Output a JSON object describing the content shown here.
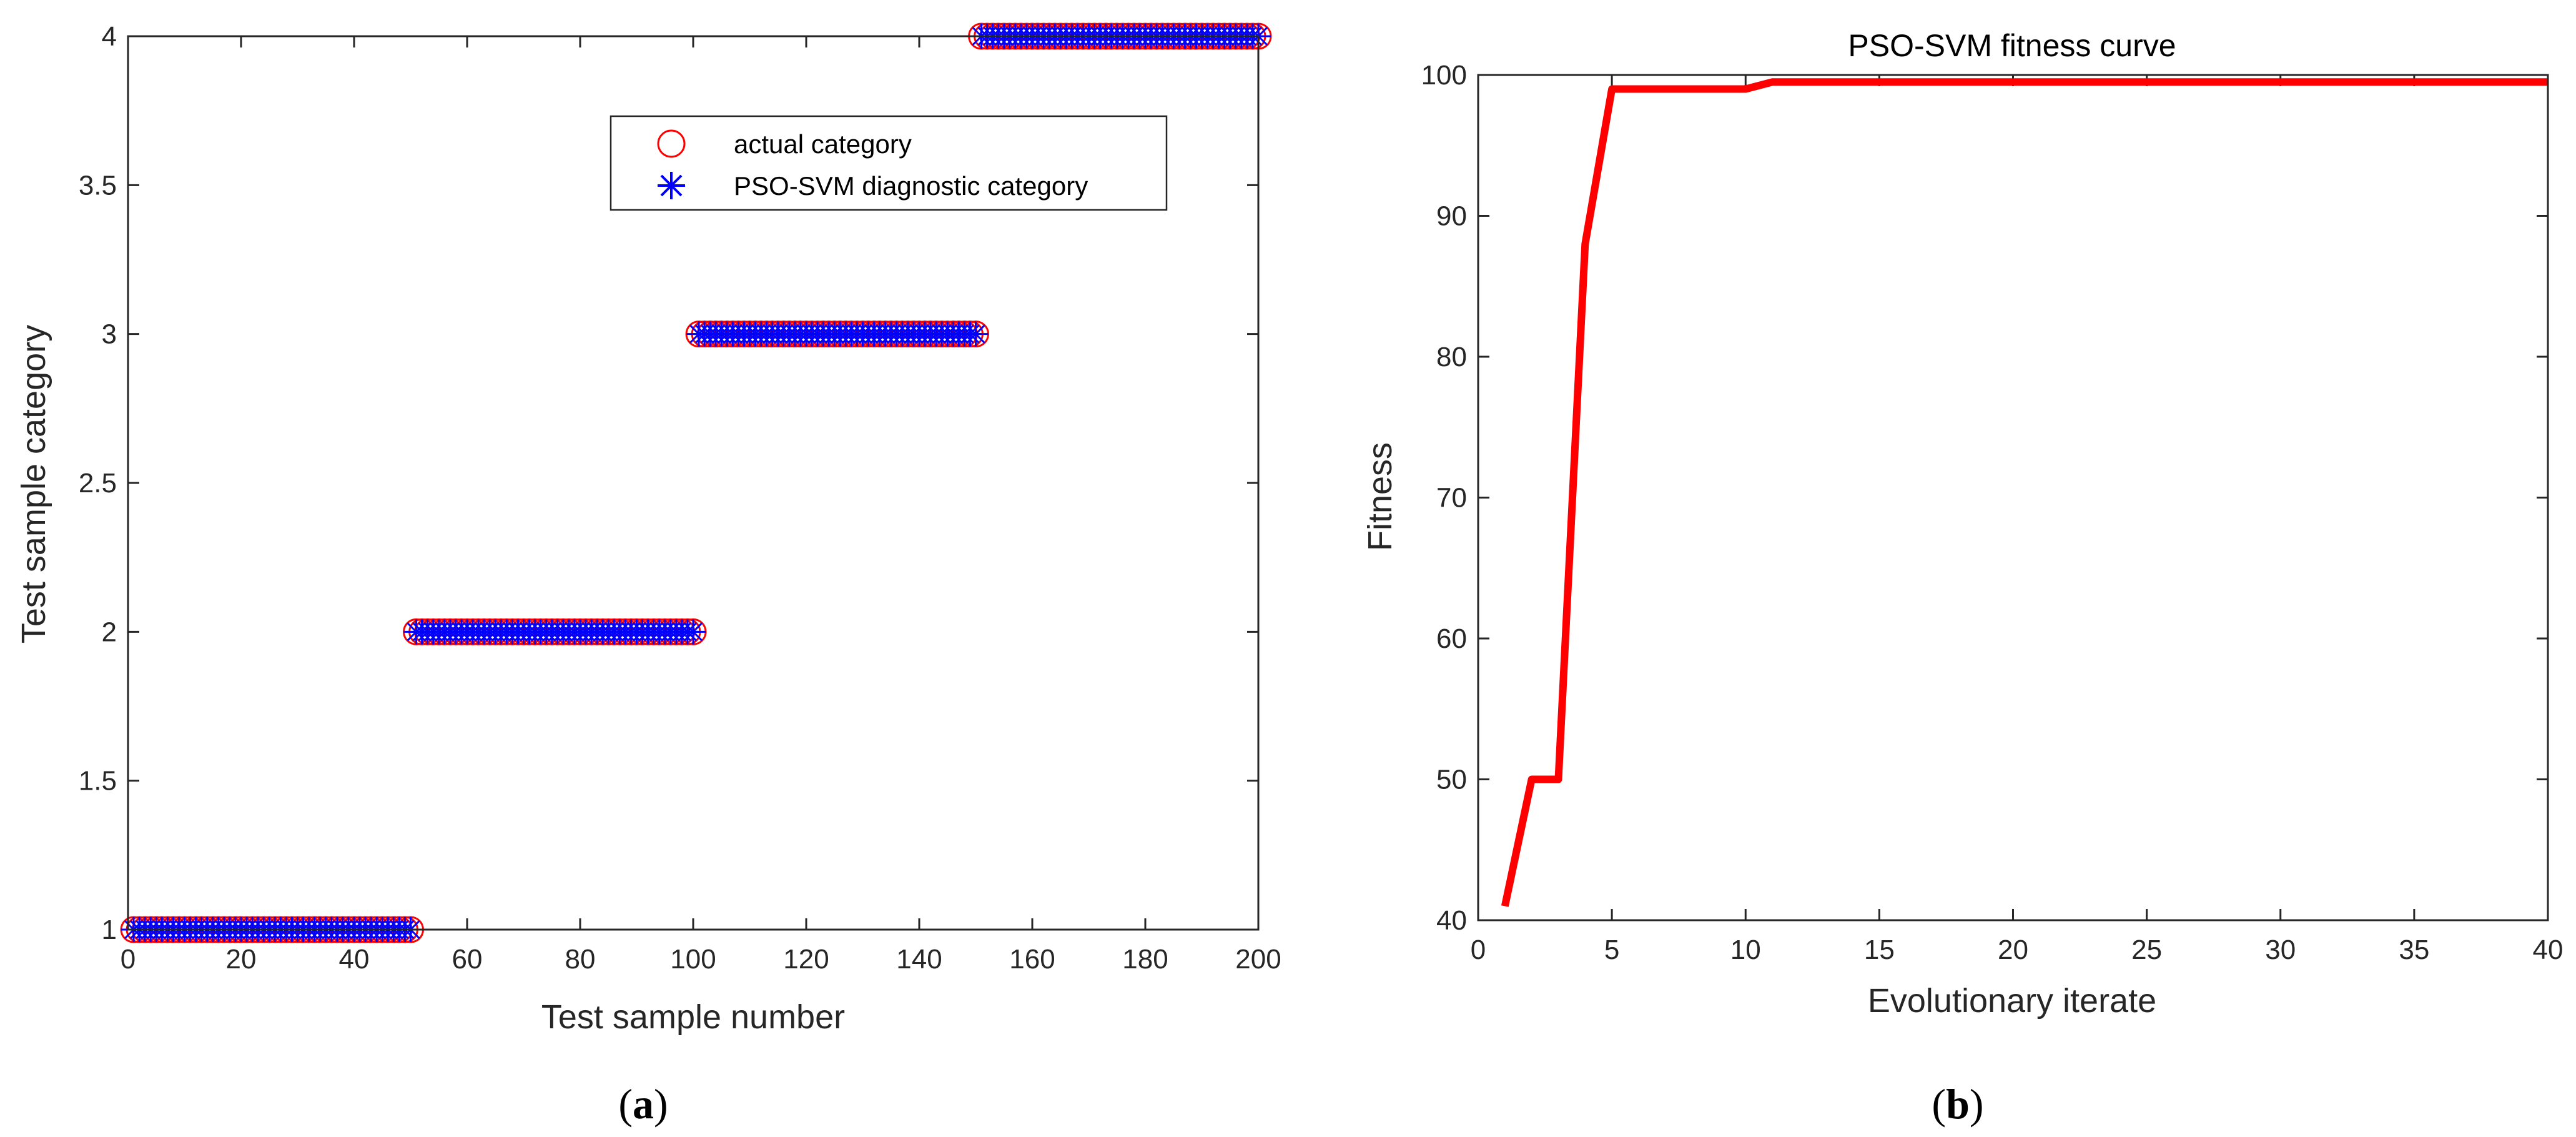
{
  "chart_data": [
    {
      "type": "scatter",
      "panel_label": "a",
      "xlabel": "Test sample number",
      "ylabel": "Test sample category",
      "xlim": [
        0,
        200
      ],
      "ylim": [
        1,
        4
      ],
      "xticks": [
        0,
        20,
        40,
        60,
        80,
        100,
        120,
        140,
        160,
        180,
        200
      ],
      "yticks": [
        1,
        1.5,
        2,
        2.5,
        3,
        3.5,
        4
      ],
      "xtick_labels": [
        "0",
        "20",
        "40",
        "60",
        "80",
        "100",
        "120",
        "140",
        "160",
        "180",
        "200"
      ],
      "ytick_labels": [
        "1",
        "1.5",
        "2",
        "2.5",
        "3",
        "3.5",
        "4"
      ],
      "legend_position": "upper-right",
      "series": [
        {
          "name": "actual category",
          "marker": "circle",
          "color": "#ff0000",
          "segments": [
            {
              "x_start": 1,
              "x_end": 50,
              "y": 1
            },
            {
              "x_start": 51,
              "x_end": 100,
              "y": 2
            },
            {
              "x_start": 101,
              "x_end": 150,
              "y": 3
            },
            {
              "x_start": 151,
              "x_end": 200,
              "y": 4
            }
          ]
        },
        {
          "name": "PSO-SVM diagnostic category",
          "marker": "asterisk",
          "color": "#0000ff",
          "segments": [
            {
              "x_start": 1,
              "x_end": 50,
              "y": 1
            },
            {
              "x_start": 51,
              "x_end": 100,
              "y": 2
            },
            {
              "x_start": 101,
              "x_end": 150,
              "y": 3
            },
            {
              "x_start": 151,
              "x_end": 200,
              "y": 4
            }
          ]
        }
      ]
    },
    {
      "type": "line",
      "panel_label": "b",
      "title": "PSO-SVM fitness curve",
      "xlabel": "Evolutionary iterate",
      "ylabel": "Fitness",
      "xlim": [
        0,
        40
      ],
      "ylim": [
        40,
        100
      ],
      "xticks": [
        0,
        5,
        10,
        15,
        20,
        25,
        30,
        35,
        40
      ],
      "yticks": [
        40,
        50,
        60,
        70,
        80,
        90,
        100
      ],
      "xtick_labels": [
        "0",
        "5",
        "10",
        "15",
        "20",
        "25",
        "30",
        "35",
        "40"
      ],
      "ytick_labels": [
        "40",
        "50",
        "60",
        "70",
        "80",
        "90",
        "100"
      ],
      "series": [
        {
          "color": "#ff0000",
          "x": [
            1,
            2,
            3,
            4,
            5,
            6,
            7,
            8,
            9,
            10,
            11,
            12,
            13,
            14,
            15,
            16,
            17,
            18,
            19,
            20,
            21,
            22,
            23,
            24,
            25,
            26,
            27,
            28,
            29,
            30,
            31,
            32,
            33,
            34,
            35,
            36,
            37,
            38,
            39,
            40
          ],
          "y": [
            41,
            50,
            50,
            88,
            99,
            99,
            99,
            99,
            99,
            99,
            99.5,
            99.5,
            99.5,
            99.5,
            99.5,
            99.5,
            99.5,
            99.5,
            99.5,
            99.5,
            99.5,
            99.5,
            99.5,
            99.5,
            99.5,
            99.5,
            99.5,
            99.5,
            99.5,
            99.5,
            99.5,
            99.5,
            99.5,
            99.5,
            99.5,
            99.5,
            99.5,
            99.5,
            99.5,
            99.5
          ]
        }
      ]
    }
  ],
  "captions": {
    "a_open": "(",
    "a_letter": "a",
    "a_close": ")",
    "b_open": "(",
    "b_letter": "b",
    "b_close": ")"
  }
}
